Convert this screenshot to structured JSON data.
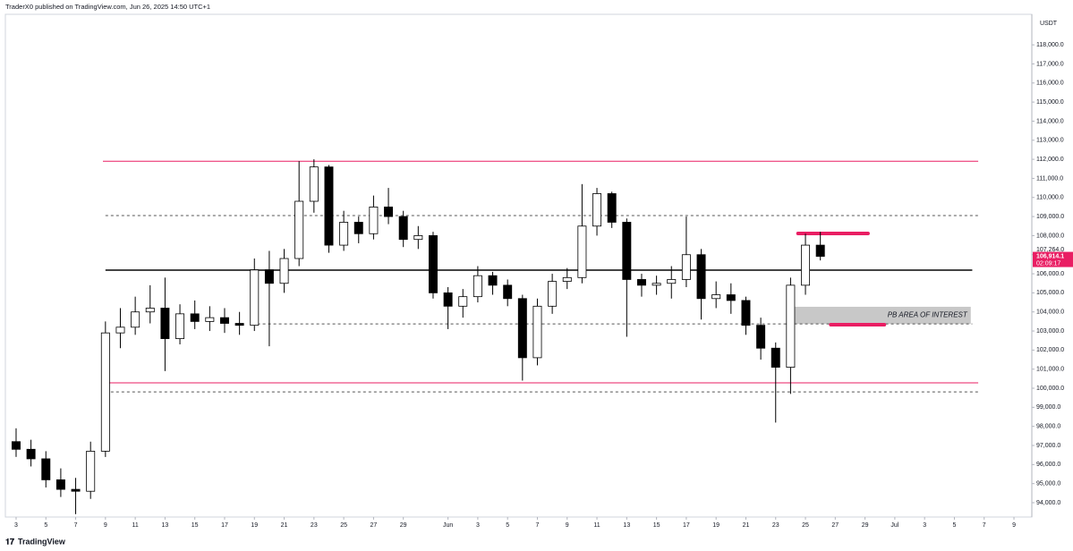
{
  "header": {
    "text": "TraderX0 published on TradingView.com, Jun 26, 2025 14:50 UTC+1"
  },
  "footer": {
    "brand": "TradingView"
  },
  "chart_data": {
    "type": "candlestick",
    "y_axis_label": "USDT",
    "up_color": "#ffffff",
    "down_color": "#000000",
    "outline_color": "#000000",
    "x": [
      2,
      3,
      4,
      5,
      6,
      7,
      8,
      9,
      10,
      11,
      12,
      13,
      14,
      15,
      16,
      17,
      18,
      19,
      20,
      21,
      22,
      23,
      24,
      25,
      26,
      27,
      28,
      29,
      30,
      31,
      32,
      33,
      34,
      35,
      36,
      37,
      38,
      39,
      40,
      41,
      42,
      43,
      44,
      45,
      46,
      47,
      48,
      49,
      50,
      51,
      52,
      53,
      54,
      55,
      56
    ],
    "open": [
      97200,
      96800,
      96300,
      95200,
      94700,
      94600,
      96700,
      102900,
      103200,
      104000,
      104200,
      102600,
      103900,
      103500,
      103700,
      103400,
      103300,
      106200,
      105500,
      106800,
      109800,
      111600,
      107500,
      108700,
      108100,
      109500,
      109000,
      107800,
      108000,
      105000,
      104300,
      104800,
      105900,
      105400,
      104700,
      101600,
      104300,
      105600,
      105800,
      108500,
      110200,
      108700,
      105700,
      105400,
      105500,
      105700,
      107000,
      104700,
      104900,
      104600,
      103300,
      102100,
      101100,
      105400,
      107500
    ],
    "high": [
      97900,
      97300,
      96700,
      95800,
      95300,
      97200,
      103500,
      104200,
      104800,
      105400,
      105800,
      104400,
      104600,
      104300,
      104200,
      104000,
      106800,
      107200,
      107300,
      111900,
      112000,
      111700,
      109300,
      109000,
      110100,
      110500,
      109300,
      108500,
      108200,
      105300,
      105200,
      106400,
      106100,
      105700,
      104900,
      104700,
      106000,
      106300,
      110700,
      110500,
      110300,
      108900,
      106000,
      105900,
      106400,
      109000,
      107300,
      105600,
      105500,
      104800,
      103700,
      102400,
      105800,
      108100,
      108200
    ],
    "low": [
      96400,
      95900,
      94800,
      94300,
      93400,
      94200,
      96400,
      102100,
      102800,
      103400,
      100900,
      102300,
      103100,
      103000,
      102900,
      102800,
      103000,
      102200,
      105000,
      106400,
      109200,
      107100,
      107200,
      107600,
      107800,
      108600,
      107400,
      107300,
      104700,
      103100,
      103700,
      104500,
      104900,
      104300,
      100400,
      101200,
      103900,
      105200,
      105500,
      108000,
      108400,
      102700,
      104800,
      104900,
      104700,
      105300,
      103600,
      104200,
      103900,
      102800,
      101500,
      98200,
      99700,
      104900,
      106700
    ],
    "close": [
      96800,
      96300,
      95200,
      94700,
      94600,
      96700,
      102900,
      103200,
      104000,
      104200,
      102600,
      103900,
      103500,
      103700,
      103400,
      103300,
      106200,
      105500,
      106800,
      109800,
      111600,
      107500,
      108700,
      108100,
      109500,
      109000,
      107800,
      108000,
      105000,
      104300,
      104800,
      105900,
      105400,
      104700,
      101600,
      104300,
      105600,
      105800,
      108500,
      110200,
      108700,
      105700,
      105400,
      105500,
      105700,
      107000,
      104700,
      104900,
      104600,
      103300,
      102100,
      101100,
      105400,
      107500,
      106914.1
    ],
    "xlim": [
      1.28,
      70.2
    ],
    "xticks": [
      {
        "value": 2,
        "label": "3"
      },
      {
        "value": 4,
        "label": "5"
      },
      {
        "value": 6,
        "label": "7"
      },
      {
        "value": 8,
        "label": "9"
      },
      {
        "value": 10,
        "label": "11"
      },
      {
        "value": 12,
        "label": "13"
      },
      {
        "value": 14,
        "label": "15"
      },
      {
        "value": 16,
        "label": "17"
      },
      {
        "value": 18,
        "label": "19"
      },
      {
        "value": 20,
        "label": "21"
      },
      {
        "value": 22,
        "label": "23"
      },
      {
        "value": 24,
        "label": "25"
      },
      {
        "value": 26,
        "label": "27"
      },
      {
        "value": 28,
        "label": "29"
      },
      {
        "value": 31,
        "label": "Jun"
      },
      {
        "value": 33,
        "label": "3"
      },
      {
        "value": 35,
        "label": "5"
      },
      {
        "value": 37,
        "label": "7"
      },
      {
        "value": 39,
        "label": "9"
      },
      {
        "value": 41,
        "label": "11"
      },
      {
        "value": 43,
        "label": "13"
      },
      {
        "value": 45,
        "label": "15"
      },
      {
        "value": 47,
        "label": "17"
      },
      {
        "value": 49,
        "label": "19"
      },
      {
        "value": 51,
        "label": "21"
      },
      {
        "value": 53,
        "label": "23"
      },
      {
        "value": 55,
        "label": "25"
      },
      {
        "value": 57,
        "label": "27"
      },
      {
        "value": 59,
        "label": "29"
      },
      {
        "value": 61,
        "label": "Jul"
      },
      {
        "value": 63,
        "label": "3"
      },
      {
        "value": 65,
        "label": "5"
      },
      {
        "value": 67,
        "label": "7"
      },
      {
        "value": 69,
        "label": "9"
      }
    ],
    "ylim": [
      93250,
      119600
    ],
    "yticks": [
      {
        "value": 94000,
        "label": "94,000.0"
      },
      {
        "value": 95000,
        "label": "95,000.0"
      },
      {
        "value": 96000,
        "label": "96,000.0"
      },
      {
        "value": 97000,
        "label": "97,000.0"
      },
      {
        "value": 98000,
        "label": "98,000.0"
      },
      {
        "value": 99000,
        "label": "99,000.0"
      },
      {
        "value": 100000,
        "label": "100,000.0"
      },
      {
        "value": 101000,
        "label": "101,000.0"
      },
      {
        "value": 102000,
        "label": "102,000.0"
      },
      {
        "value": 103000,
        "label": "103,000.0"
      },
      {
        "value": 104000,
        "label": "104,000.0"
      },
      {
        "value": 105000,
        "label": "105,000.0"
      },
      {
        "value": 106000,
        "label": "106,000.0"
      },
      {
        "value": 107000,
        "label": "107,000.0"
      },
      {
        "value": 108000,
        "label": "108,000.0"
      },
      {
        "value": 109000,
        "label": "109,000.0"
      },
      {
        "value": 110000,
        "label": "110,000.0"
      },
      {
        "value": 111000,
        "label": "111,000.0"
      },
      {
        "value": 112000,
        "label": "112,000.0"
      },
      {
        "value": 113000,
        "label": "113,000.0"
      },
      {
        "value": 114000,
        "label": "114,000.0"
      },
      {
        "value": 115000,
        "label": "115,000.0"
      },
      {
        "value": 116000,
        "label": "116,000.0"
      },
      {
        "value": 117000,
        "label": "117,000.0"
      },
      {
        "value": 118000,
        "label": "118,000.0"
      }
    ],
    "hlines": [
      {
        "value": 111900,
        "color": "#e91e63",
        "style": "solid",
        "width": 1,
        "x0": 7.83,
        "x1": 66.6
      },
      {
        "value": 109050,
        "color": "#555555",
        "style": "dashed",
        "width": 1,
        "x0": 8.0,
        "x1": 66.6
      },
      {
        "value": 106190,
        "color": "#444444",
        "style": "solid",
        "width": 2,
        "x0": 8.0,
        "x1": 66.2
      },
      {
        "value": 103370,
        "color": "#555555",
        "style": "dashed",
        "width": 1,
        "x0": 18.2,
        "x1": 66.2
      },
      {
        "value": 100280,
        "color": "#e91e63",
        "style": "solid",
        "width": 1,
        "x0": 7.83,
        "x1": 66.6
      },
      {
        "value": 99810,
        "color": "#555555",
        "style": "dashed",
        "width": 1,
        "x0": 8.0,
        "x1": 66.6
      },
      {
        "value": 108110,
        "color": "#e91e63",
        "style": "solid",
        "width": 4,
        "x0": 54.5,
        "x1": 59.2
      },
      {
        "value": 103330,
        "color": "#e91e63",
        "style": "solid",
        "width": 4,
        "x0": 56.7,
        "x1": 60.3
      }
    ],
    "zone": {
      "label": "PB AREA OF INTEREST",
      "low": 103370,
      "high": 104270,
      "x0": 53.9,
      "x1": 66.1,
      "color": "#c8c8c8"
    },
    "high_label": {
      "value": 107264,
      "label": "107,264.0"
    },
    "last_price": {
      "value": 106914.1,
      "label": "106,914.1",
      "countdown": "02:09:17",
      "color": "#e91e63"
    }
  }
}
